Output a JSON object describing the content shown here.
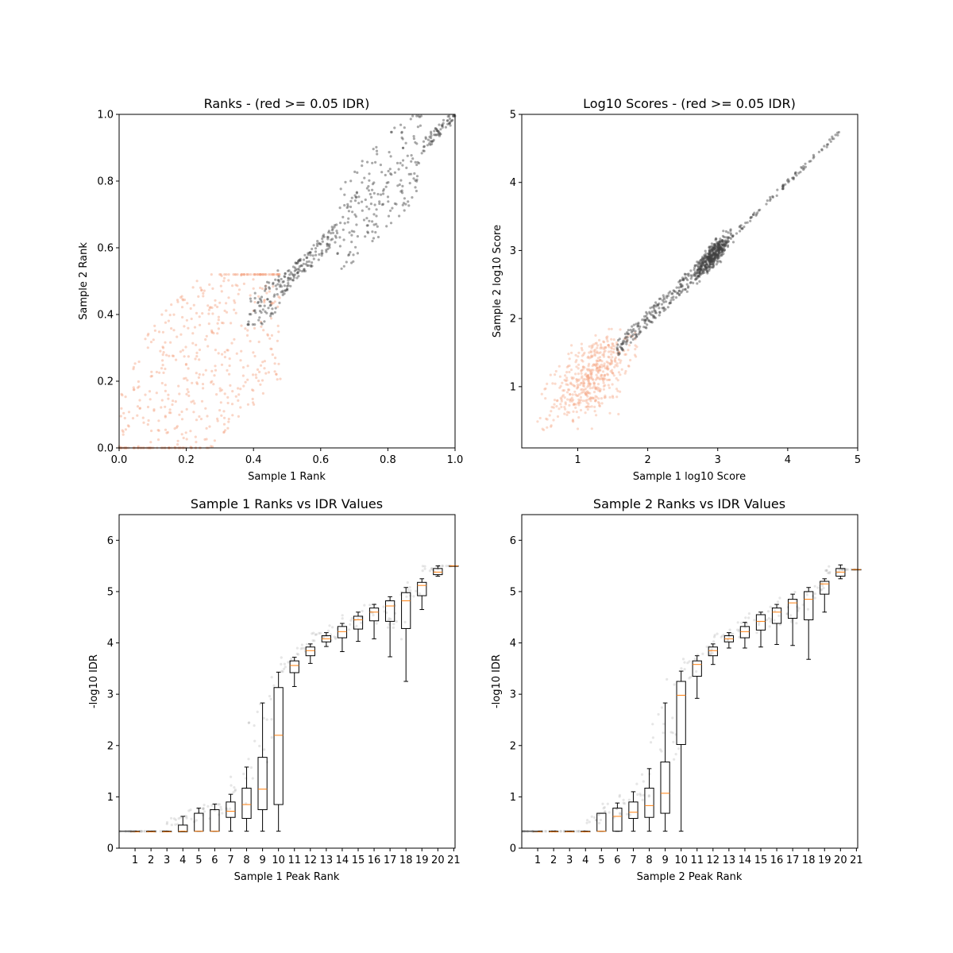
{
  "chart_data": [
    {
      "type": "scatter",
      "title": "Ranks - (red >= 0.05 IDR)",
      "xlabel": "Sample 1 Rank",
      "ylabel": "Sample 2 Rank",
      "xlim": [
        0.0,
        1.0
      ],
      "ylim": [
        0.0,
        1.0
      ],
      "xticks": [
        "0.0",
        "0.2",
        "0.4",
        "0.6",
        "0.8",
        "1.0"
      ],
      "yticks": [
        "0.0",
        "0.2",
        "0.4",
        "0.6",
        "0.8",
        "1.0"
      ],
      "colors": {
        "pass": "#404040",
        "fail": "#f4a582"
      },
      "series": [
        {
          "name": "",
          "color_key": "fail",
          "pattern": "lower-left cloud",
          "x_range": [
            0.0,
            0.5
          ],
          "y_range": [
            0.0,
            0.52
          ]
        },
        {
          "name": "",
          "color_key": "pass",
          "pattern": "diagonal band",
          "x_range": [
            0.38,
            1.0
          ],
          "y_range": [
            0.38,
            1.0
          ]
        }
      ]
    },
    {
      "type": "scatter",
      "title": "Log10 Scores - (red >= 0.05 IDR)",
      "xlabel": "Sample 1 log10 Score",
      "ylabel": "Sample 2 log10 Score",
      "xlim": [
        0.2,
        5.0
      ],
      "ylim": [
        0.1,
        5.0
      ],
      "xticks": [
        "1",
        "2",
        "3",
        "4",
        "5"
      ],
      "yticks": [
        "1",
        "2",
        "3",
        "4",
        "5"
      ],
      "colors": {
        "pass": "#404040",
        "fail": "#f4a582"
      },
      "series": [
        {
          "name": "",
          "color_key": "fail",
          "center": [
            1.2,
            1.1
          ],
          "x_range": [
            0.4,
            1.8
          ],
          "y_range": [
            0.4,
            1.8
          ]
        },
        {
          "name": "",
          "color_key": "pass",
          "center": [
            2.97,
            2.97
          ],
          "x_range": [
            1.5,
            4.8
          ],
          "y_range": [
            1.5,
            4.8
          ]
        }
      ]
    },
    {
      "type": "box",
      "title": "Sample 1 Ranks vs IDR Values",
      "xlabel": "Sample 1 Peak Rank",
      "ylabel": "-log10 IDR",
      "ylim": [
        0,
        6.5
      ],
      "yticks": [
        "0",
        "1",
        "2",
        "3",
        "4",
        "5",
        "6"
      ],
      "categories": [
        "1",
        "2",
        "3",
        "4",
        "5",
        "6",
        "7",
        "8",
        "9",
        "10",
        "11",
        "12",
        "13",
        "14",
        "15",
        "16",
        "17",
        "18",
        "19",
        "20",
        "21"
      ],
      "boxes": [
        {
          "wl": 0.33,
          "q1": 0.32,
          "med": 0.32,
          "q3": 0.33,
          "wh": 0.33
        },
        {
          "wl": 0.33,
          "q1": 0.32,
          "med": 0.32,
          "q3": 0.33,
          "wh": 0.33
        },
        {
          "wl": 0.33,
          "q1": 0.32,
          "med": 0.32,
          "q3": 0.33,
          "wh": 0.33
        },
        {
          "wl": 0.33,
          "q1": 0.32,
          "med": 0.33,
          "q3": 0.45,
          "wh": 0.62
        },
        {
          "wl": 0.33,
          "q1": 0.33,
          "med": 0.33,
          "q3": 0.68,
          "wh": 0.78
        },
        {
          "wl": 0.33,
          "q1": 0.33,
          "med": 0.33,
          "q3": 0.75,
          "wh": 0.86
        },
        {
          "wl": 0.33,
          "q1": 0.6,
          "med": 0.72,
          "q3": 0.9,
          "wh": 1.05
        },
        {
          "wl": 0.33,
          "q1": 0.58,
          "med": 0.85,
          "q3": 1.17,
          "wh": 1.58
        },
        {
          "wl": 0.33,
          "q1": 0.75,
          "med": 1.15,
          "q3": 1.77,
          "wh": 2.83
        },
        {
          "wl": 0.33,
          "q1": 0.85,
          "med": 2.2,
          "q3": 3.13,
          "wh": 3.43
        },
        {
          "wl": 3.15,
          "q1": 3.42,
          "med": 3.56,
          "q3": 3.65,
          "wh": 3.72
        },
        {
          "wl": 3.6,
          "q1": 3.75,
          "med": 3.85,
          "q3": 3.92,
          "wh": 3.98
        },
        {
          "wl": 3.93,
          "q1": 4.02,
          "med": 4.08,
          "q3": 4.14,
          "wh": 4.2
        },
        {
          "wl": 3.83,
          "q1": 4.1,
          "med": 4.22,
          "q3": 4.32,
          "wh": 4.38
        },
        {
          "wl": 4.03,
          "q1": 4.27,
          "med": 4.45,
          "q3": 4.52,
          "wh": 4.6
        },
        {
          "wl": 4.08,
          "q1": 4.43,
          "med": 4.6,
          "q3": 4.68,
          "wh": 4.75
        },
        {
          "wl": 3.73,
          "q1": 4.42,
          "med": 4.72,
          "q3": 4.82,
          "wh": 4.9
        },
        {
          "wl": 3.25,
          "q1": 4.28,
          "med": 4.82,
          "q3": 4.98,
          "wh": 5.08
        },
        {
          "wl": 4.65,
          "q1": 4.92,
          "med": 5.12,
          "q3": 5.18,
          "wh": 5.25
        },
        {
          "wl": 5.3,
          "q1": 5.33,
          "med": 5.38,
          "q3": 5.45,
          "wh": 5.5
        },
        {
          "wl": 5.5,
          "q1": 5.5,
          "med": 5.5,
          "q3": 5.5,
          "wh": 5.5
        }
      ]
    },
    {
      "type": "box",
      "title": "Sample 2 Ranks vs IDR Values",
      "xlabel": "Sample 2 Peak Rank",
      "ylabel": "-log10 IDR",
      "ylim": [
        0,
        6.5
      ],
      "yticks": [
        "0",
        "1",
        "2",
        "3",
        "4",
        "5",
        "6"
      ],
      "categories": [
        "1",
        "2",
        "3",
        "4",
        "5",
        "6",
        "7",
        "8",
        "9",
        "10",
        "11",
        "12",
        "13",
        "14",
        "15",
        "16",
        "17",
        "18",
        "19",
        "20",
        "21"
      ],
      "boxes": [
        {
          "wl": 0.33,
          "q1": 0.32,
          "med": 0.32,
          "q3": 0.33,
          "wh": 0.33
        },
        {
          "wl": 0.33,
          "q1": 0.32,
          "med": 0.32,
          "q3": 0.33,
          "wh": 0.33
        },
        {
          "wl": 0.33,
          "q1": 0.32,
          "med": 0.32,
          "q3": 0.33,
          "wh": 0.33
        },
        {
          "wl": 0.33,
          "q1": 0.32,
          "med": 0.32,
          "q3": 0.33,
          "wh": 0.33
        },
        {
          "wl": 0.33,
          "q1": 0.33,
          "med": 0.33,
          "q3": 0.68,
          "wh": 0.68
        },
        {
          "wl": 0.33,
          "q1": 0.33,
          "med": 0.62,
          "q3": 0.78,
          "wh": 0.88
        },
        {
          "wl": 0.33,
          "q1": 0.58,
          "med": 0.7,
          "q3": 0.9,
          "wh": 1.1
        },
        {
          "wl": 0.33,
          "q1": 0.6,
          "med": 0.83,
          "q3": 1.17,
          "wh": 1.55
        },
        {
          "wl": 0.33,
          "q1": 0.68,
          "med": 1.07,
          "q3": 1.68,
          "wh": 2.83
        },
        {
          "wl": 0.33,
          "q1": 2.02,
          "med": 2.98,
          "q3": 3.25,
          "wh": 3.45
        },
        {
          "wl": 2.92,
          "q1": 3.35,
          "med": 3.58,
          "q3": 3.65,
          "wh": 3.75
        },
        {
          "wl": 3.58,
          "q1": 3.75,
          "med": 3.85,
          "q3": 3.92,
          "wh": 3.98
        },
        {
          "wl": 3.9,
          "q1": 4.02,
          "med": 4.08,
          "q3": 4.14,
          "wh": 4.2
        },
        {
          "wl": 3.9,
          "q1": 4.1,
          "med": 4.22,
          "q3": 4.32,
          "wh": 4.4
        },
        {
          "wl": 3.92,
          "q1": 4.25,
          "med": 4.42,
          "q3": 4.55,
          "wh": 4.6
        },
        {
          "wl": 3.97,
          "q1": 4.38,
          "med": 4.6,
          "q3": 4.68,
          "wh": 4.75
        },
        {
          "wl": 3.95,
          "q1": 4.48,
          "med": 4.78,
          "q3": 4.85,
          "wh": 4.95
        },
        {
          "wl": 3.68,
          "q1": 4.45,
          "med": 4.85,
          "q3": 5.0,
          "wh": 5.08
        },
        {
          "wl": 4.6,
          "q1": 4.95,
          "med": 5.15,
          "q3": 5.2,
          "wh": 5.25
        },
        {
          "wl": 5.25,
          "q1": 5.3,
          "med": 5.38,
          "q3": 5.45,
          "wh": 5.52
        },
        {
          "wl": 5.43,
          "q1": 5.43,
          "med": 5.43,
          "q3": 5.43,
          "wh": 5.43
        }
      ]
    }
  ]
}
